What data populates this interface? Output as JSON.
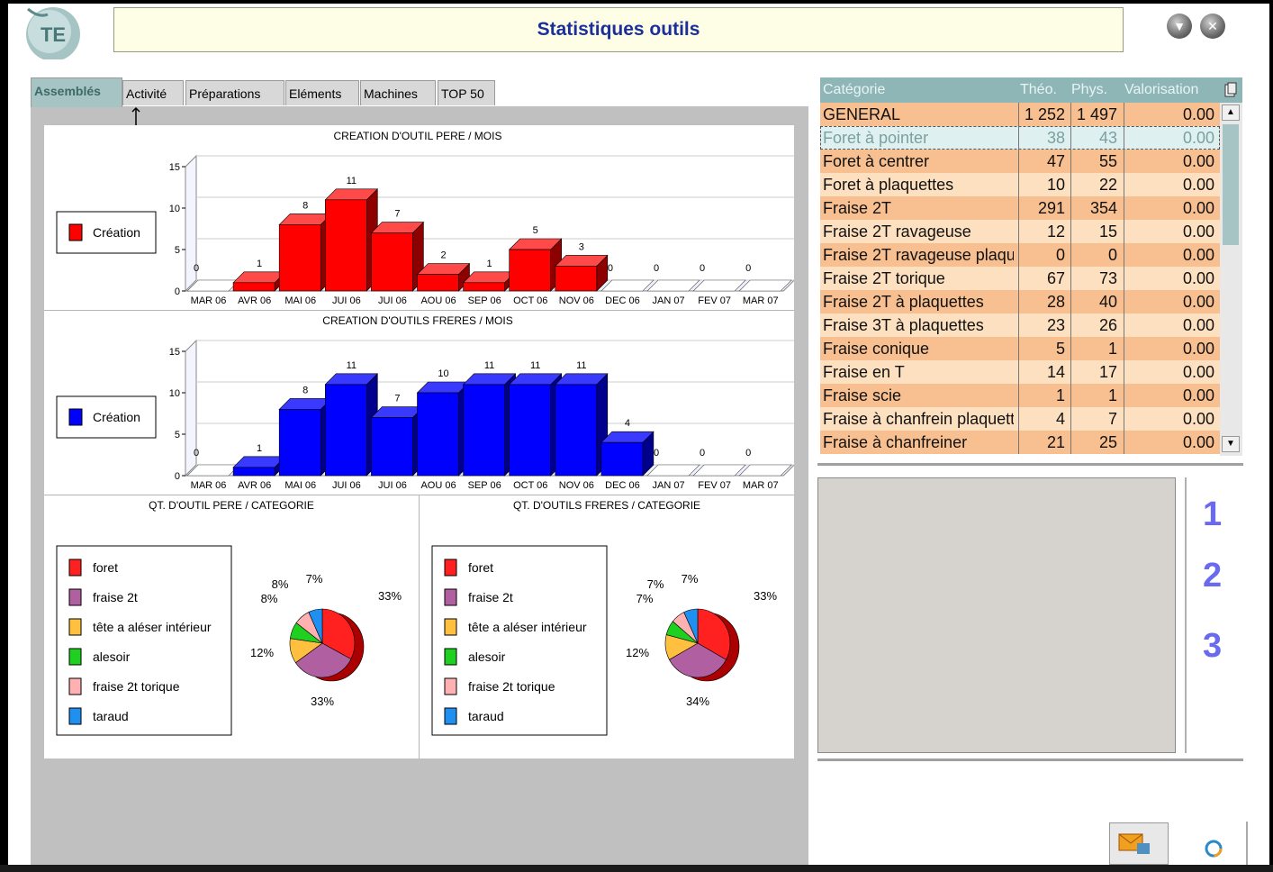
{
  "title": "Statistiques outils",
  "logo": {
    "text": "TE"
  },
  "tabs": [
    {
      "label": "Assemblés",
      "active": true
    },
    {
      "label": "Activité"
    },
    {
      "label": "Préparations"
    },
    {
      "label": "Eléments"
    },
    {
      "label": "Machines"
    },
    {
      "label": "TOP 50"
    }
  ],
  "chart_data": [
    {
      "type": "bar",
      "title": "CREATION D'OUTIL PERE / MOIS",
      "categories": [
        "MAR 06",
        "AVR 06",
        "MAI 06",
        "JUI 06",
        "JUI 06",
        "AOU 06",
        "SEP 06",
        "OCT 06",
        "NOV 06",
        "DEC 06",
        "JAN 07",
        "FEV 07",
        "MAR 07"
      ],
      "series": [
        {
          "name": "Création",
          "values": [
            0,
            1,
            8,
            11,
            7,
            2,
            1,
            5,
            3,
            0,
            0,
            0,
            0
          ]
        }
      ],
      "ylim": [
        0,
        15
      ],
      "yticks": [
        0,
        5,
        10,
        15
      ],
      "color": "#ff0000",
      "legend": "left"
    },
    {
      "type": "bar",
      "title": "CREATION D'OUTILS FRERES / MOIS",
      "categories": [
        "MAR 06",
        "AVR 06",
        "MAI 06",
        "JUI 06",
        "JUI 06",
        "AOU 06",
        "SEP 06",
        "OCT 06",
        "NOV 06",
        "DEC 06",
        "JAN 07",
        "FEV 07",
        "MAR 07"
      ],
      "series": [
        {
          "name": "Création",
          "values": [
            0,
            1,
            8,
            11,
            7,
            10,
            11,
            11,
            11,
            4,
            0,
            0,
            0
          ]
        }
      ],
      "ylim": [
        0,
        15
      ],
      "yticks": [
        0,
        5,
        10,
        15
      ],
      "color": "#0000ff",
      "legend": "left"
    },
    {
      "type": "pie",
      "title": "QT. D'OUTIL PERE / CATEGORIE",
      "labels": [
        "foret",
        "fraise 2t",
        "tête a aléser intérieur",
        "alesoir",
        "fraise 2t torique",
        "taraud"
      ],
      "values": [
        33,
        33,
        12,
        8,
        8,
        7
      ],
      "colors": [
        "#ff2020",
        "#b060a0",
        "#ffc040",
        "#20d020",
        "#ffb0b0",
        "#2090f0"
      ],
      "legend": "left"
    },
    {
      "type": "pie",
      "title": "QT. D'OUTILS FRERES / CATEGORIE",
      "labels": [
        "foret",
        "fraise 2t",
        "tête a aléser intérieur",
        "alesoir",
        "fraise 2t torique",
        "taraud"
      ],
      "values": [
        33,
        34,
        12,
        7,
        7,
        7
      ],
      "colors": [
        "#ff2020",
        "#b060a0",
        "#ffc040",
        "#20d020",
        "#ffb0b0",
        "#2090f0"
      ],
      "legend": "left"
    }
  ],
  "grid": {
    "headers": [
      "Catégorie",
      "Théo.",
      "Phys.",
      "Valorisation"
    ],
    "rows": [
      {
        "cat": "GENERAL",
        "theo": "1 252",
        "phys": "1 497",
        "val": "0.00"
      },
      {
        "cat": "Foret à pointer",
        "theo": "38",
        "phys": "43",
        "val": "0.00",
        "selected": true
      },
      {
        "cat": "Foret à centrer",
        "theo": "47",
        "phys": "55",
        "val": "0.00"
      },
      {
        "cat": "Foret à plaquettes",
        "theo": "10",
        "phys": "22",
        "val": "0.00"
      },
      {
        "cat": "Fraise 2T",
        "theo": "291",
        "phys": "354",
        "val": "0.00"
      },
      {
        "cat": "Fraise 2T ravageuse",
        "theo": "12",
        "phys": "15",
        "val": "0.00"
      },
      {
        "cat": "Fraise 2T ravageuse plaqu",
        "theo": "0",
        "phys": "0",
        "val": "0.00"
      },
      {
        "cat": "Fraise 2T torique",
        "theo": "67",
        "phys": "73",
        "val": "0.00"
      },
      {
        "cat": "Fraise 2T à plaquettes",
        "theo": "28",
        "phys": "40",
        "val": "0.00"
      },
      {
        "cat": "Fraise 3T à plaquettes",
        "theo": "23",
        "phys": "26",
        "val": "0.00"
      },
      {
        "cat": "Fraise conique",
        "theo": "5",
        "phys": "1",
        "val": "0.00"
      },
      {
        "cat": "Fraise en T",
        "theo": "14",
        "phys": "17",
        "val": "0.00"
      },
      {
        "cat": "Fraise scie",
        "theo": "1",
        "phys": "1",
        "val": "0.00"
      },
      {
        "cat": "Fraise à chanfrein plaquett",
        "theo": "4",
        "phys": "7",
        "val": "0.00"
      },
      {
        "cat": "Fraise à chanfreiner",
        "theo": "21",
        "phys": "25",
        "val": "0.00"
      }
    ],
    "colors": {
      "odd": "#f8c090",
      "even": "#fde0c0",
      "selected": "#dff0f0",
      "selected_text": "#7aa0a0"
    }
  },
  "side_numbers": [
    "1",
    "2",
    "3"
  ]
}
